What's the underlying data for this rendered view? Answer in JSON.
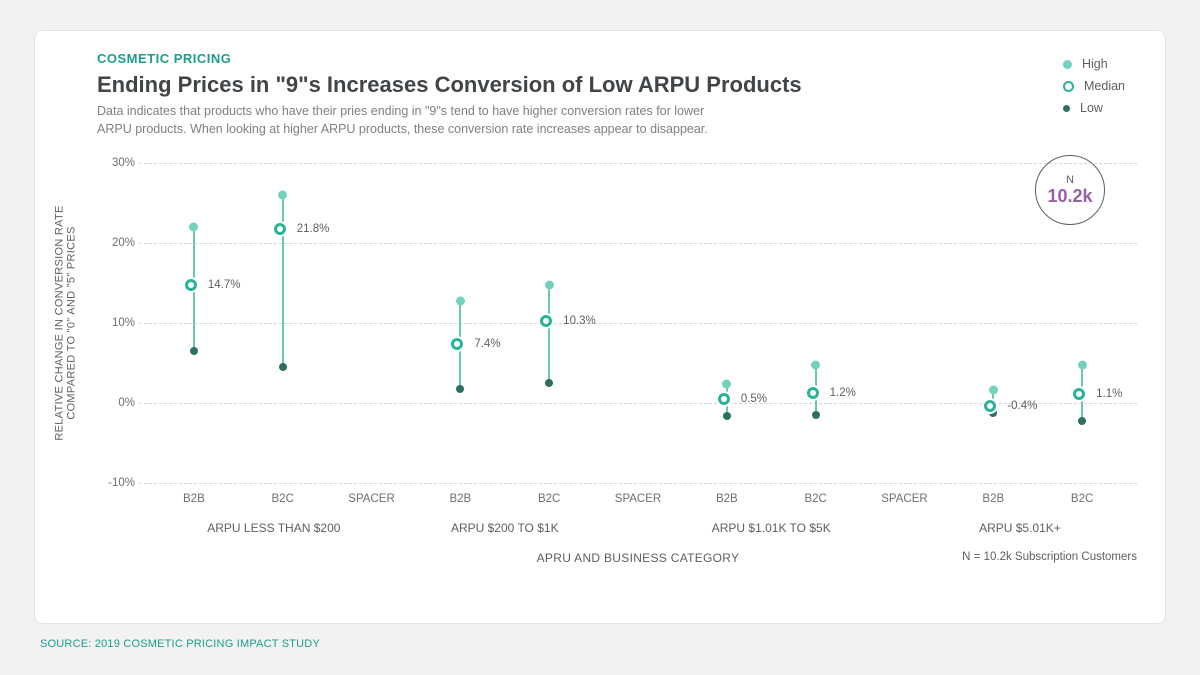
{
  "header": {
    "eyebrow": "COSMETIC PRICING",
    "title": "Ending Prices in \"9\"s Increases Conversion of Low ARPU Products",
    "subtitle": "Data indicates that products who have their pries ending in \"9\"s tend to have higher conversion rates for lower ARPU products. When looking at higher ARPU products, these conversion rate increases appear to disappear."
  },
  "legend": {
    "items": [
      {
        "label": "High",
        "kind": "solid-light"
      },
      {
        "label": "Median",
        "kind": "ring"
      },
      {
        "label": "Low",
        "kind": "solid-dark"
      }
    ]
  },
  "badge": {
    "n_label": "N",
    "n_value": "10.2k"
  },
  "footer": {
    "n_note": "N = 10.2k Subscription Customers"
  },
  "source": "SOURCE: 2019 COSMETIC PRICING IMPACT STUDY",
  "chart": {
    "colors": {
      "high": "#73d2bd",
      "median": "#2bb39a",
      "low": "#2f6e63",
      "line": "#68c7b1",
      "grid": "#d5d5d5",
      "text": "#5c6063"
    },
    "y_axis": {
      "title": "RELATIVE CHANGE IN CONVERSION RATE\nCOMPARED TO \"0\" AND \"5\" PRICES",
      "min": -10,
      "max": 30,
      "ticks": [
        -10,
        0,
        10,
        20,
        30
      ],
      "tick_labels": [
        "-10%",
        "0%",
        "10%",
        "20%",
        "30%"
      ]
    },
    "x_axis": {
      "title": "APRU AND BUSINESS CATEGORY",
      "slots": [
        {
          "key": "g1b2b",
          "label": "B2B",
          "data_index": 0
        },
        {
          "key": "g1b2c",
          "label": "B2C",
          "data_index": 1
        },
        {
          "key": "sp1",
          "label": "SPACER",
          "data_index": null
        },
        {
          "key": "g2b2b",
          "label": "B2B",
          "data_index": 2
        },
        {
          "key": "g2b2c",
          "label": "B2C",
          "data_index": 3
        },
        {
          "key": "sp2",
          "label": "SPACER",
          "data_index": null
        },
        {
          "key": "g3b2b",
          "label": "B2B",
          "data_index": 4
        },
        {
          "key": "g3b2c",
          "label": "B2C",
          "data_index": 5
        },
        {
          "key": "sp3",
          "label": "SPACER",
          "data_index": null
        },
        {
          "key": "g4b2b",
          "label": "B2B",
          "data_index": 6
        },
        {
          "key": "g4b2c",
          "label": "B2C",
          "data_index": 7
        }
      ],
      "groups": [
        {
          "label": "ARPU LESS THAN $200",
          "center_slot": 0.9
        },
        {
          "label": "ARPU $200 TO $1K",
          "center_slot": 3.5
        },
        {
          "label": "ARPU $1.01K TO $5K",
          "center_slot": 6.5
        },
        {
          "label": "ARPU $5.01K+",
          "center_slot": 9.3
        }
      ]
    },
    "series": [
      {
        "low": 6.5,
        "median": 14.7,
        "high": 22.0,
        "label": "14.7%"
      },
      {
        "low": 4.5,
        "median": 21.8,
        "high": 26.0,
        "label": "21.8%"
      },
      {
        "low": 1.8,
        "median": 7.4,
        "high": 12.8,
        "label": "7.4%"
      },
      {
        "low": 2.5,
        "median": 10.3,
        "high": 14.7,
        "label": "10.3%"
      },
      {
        "low": -1.6,
        "median": 0.5,
        "high": 2.4,
        "label": "0.5%"
      },
      {
        "low": -1.5,
        "median": 1.2,
        "high": 4.8,
        "label": "1.2%"
      },
      {
        "low": -1.2,
        "median": -0.4,
        "high": 1.6,
        "label": "-0.4%"
      },
      {
        "low": -2.2,
        "median": 1.1,
        "high": 4.7,
        "label": "1.1%"
      }
    ]
  }
}
